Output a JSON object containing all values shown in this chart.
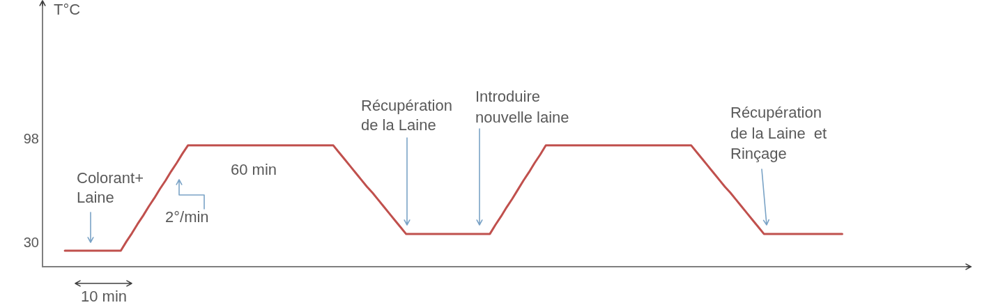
{
  "chart_data": {
    "type": "line",
    "ylabel": "T°C",
    "categories": [
      null,
      null,
      null,
      null,
      null,
      null,
      null,
      null,
      null,
      null,
      null,
      null,
      null,
      null,
      null,
      null,
      null,
      null,
      null,
      null,
      null,
      null,
      null,
      null,
      null,
      null,
      null,
      null,
      null,
      null,
      null,
      null,
      null,
      null,
      null,
      null,
      null,
      null,
      null,
      null,
      null,
      null,
      null,
      null,
      null,
      null,
      null,
      null,
      null,
      null,
      null,
      null,
      null,
      null,
      null,
      null,
      null,
      null,
      null,
      null,
      null,
      null,
      null,
      null,
      null,
      null,
      null,
      null,
      null,
      null,
      null,
      null,
      null,
      null,
      null,
      null,
      null,
      null,
      null,
      null,
      null,
      null,
      null,
      null,
      null,
      null,
      null,
      null,
      null,
      null,
      null,
      null,
      null,
      null,
      null,
      null,
      null,
      null,
      null,
      null,
      null,
      null,
      null,
      null,
      null,
      null,
      null,
      null,
      null,
      null,
      null,
      null,
      null,
      null,
      null,
      null,
      null,
      null,
      null,
      null,
      null,
      null,
      null,
      null,
      null,
      null,
      null,
      null,
      null,
      null,
      null,
      null,
      null,
      null,
      null,
      null,
      null,
      null,
      null,
      null,
      null,
      null,
      null,
      null,
      null,
      null,
      null,
      null,
      null,
      null,
      null,
      null,
      null,
      null,
      null,
      null,
      null,
      null,
      null,
      null,
      null,
      null,
      null,
      null,
      null,
      null,
      null
    ],
    "values": [
      null,
      null,
      null,
      null,
      25,
      25,
      25,
      25,
      25,
      25,
      25,
      25,
      25,
      25,
      25,
      31,
      36.5,
      42.5,
      48,
      54,
      59.5,
      65.5,
      71,
      77,
      82.5,
      88.5,
      94,
      94,
      94,
      94,
      94,
      94,
      94,
      94,
      94,
      94,
      94,
      94,
      94,
      94,
      94,
      94,
      94,
      94,
      94,
      94,
      94,
      94,
      94,
      94,
      94,
      94,
      94,
      89.5,
      85,
      80.5,
      76,
      71.5,
      67,
      63,
      58.5,
      54,
      49.5,
      45,
      40.5,
      36,
      36,
      36,
      36,
      36,
      36,
      36,
      36,
      36,
      36,
      36,
      36,
      36,
      36,
      36,
      36,
      42,
      47.5,
      53.5,
      59,
      65,
      71,
      76.5,
      82.5,
      88,
      94,
      94,
      94,
      94,
      94,
      94,
      94,
      94,
      94,
      94,
      94,
      94,
      94,
      94,
      94,
      94,
      94,
      94,
      94,
      94,
      94,
      94,
      94,
      94,
      94,
      94,
      94,
      89.5,
      85,
      80.5,
      76,
      71.5,
      67,
      63,
      58.5,
      54,
      49.5,
      45,
      40.5,
      36,
      36,
      36,
      36,
      36,
      36,
      36,
      36,
      36,
      36,
      36,
      36,
      36,
      36,
      36,
      null,
      null,
      null,
      null,
      null,
      null,
      null,
      null,
      null,
      null,
      null,
      null,
      null,
      null,
      null,
      null,
      null,
      null,
      null,
      null,
      null,
      null,
      null
    ],
    "color": "#c0504d",
    "ylim": [
      14.5,
      187.5
    ],
    "yticks": [
      30,
      98
    ],
    "tick_labels": "y",
    "marker": "none",
    "line_style": "solid",
    "annotations": [
      "Colorant+\nLaine",
      "2°/min",
      "60 min",
      "Récupération\nde la Laine",
      "Introduire\nnouvelle laine",
      "Récupération\nde la Laine  et\nRinçage",
      "10 min"
    ]
  }
}
